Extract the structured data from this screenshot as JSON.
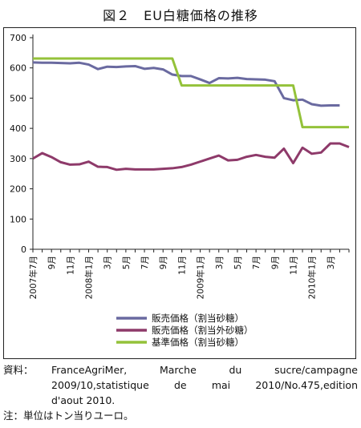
{
  "figure_title": "図２　EU白糖価格の推移",
  "chart_data": {
    "type": "line",
    "title": "図２　EU白糖価格の推移",
    "xlabel": "",
    "ylabel": "",
    "ylim": [
      0,
      700
    ],
    "y_ticks": [
      0,
      100,
      200,
      300,
      400,
      500,
      600,
      700
    ],
    "grid": false,
    "legend_position": "bottom",
    "x_labels": [
      "2007年7月",
      "9月",
      "11月",
      "2008年1月",
      "3月",
      "5月",
      "7月",
      "9月",
      "11月",
      "2009年1月",
      "3月",
      "5月",
      "7月",
      "9月",
      "11月",
      "2010年1月",
      "3月"
    ],
    "series": [
      {
        "name": "販売価格（割当砂糖）",
        "color": "#6a6aa0",
        "values": [
          618,
          617,
          617,
          616,
          615,
          617,
          611,
          596,
          604,
          603,
          605,
          606,
          597,
          600,
          595,
          578,
          573,
          573,
          562,
          550,
          566,
          565,
          567,
          563,
          562,
          561,
          556,
          500,
          493,
          495,
          480,
          475,
          476,
          476
        ]
      },
      {
        "name": "販売価格（割当外砂糖）",
        "color": "#8e3a6a",
        "values": [
          300,
          318,
          305,
          288,
          280,
          281,
          290,
          273,
          272,
          263,
          266,
          264,
          264,
          264,
          266,
          268,
          272,
          280,
          290,
          300,
          310,
          294,
          296,
          306,
          312,
          306,
          303,
          333,
          285,
          336,
          316,
          320,
          350,
          350,
          338
        ]
      },
      {
        "name": "基準価格（割当砂糖）",
        "color": "#94c23a",
        "values": [
          631,
          631,
          631,
          631,
          631,
          631,
          631,
          631,
          631,
          631,
          631,
          631,
          631,
          631,
          631,
          631,
          542,
          542,
          542,
          542,
          542,
          542,
          542,
          542,
          542,
          542,
          542,
          542,
          542,
          404,
          404,
          404,
          404,
          404,
          404
        ]
      }
    ]
  },
  "notes": {
    "source_label": "資料：",
    "source_line1": "FranceAgriMer, Marche du sucre/campagne",
    "source_line2": "2009/10,statistique de mai 2010/No.475,edition",
    "source_line3": "d'aout 2010.",
    "unit_note": "注：単位はトン当りユーロ。"
  }
}
